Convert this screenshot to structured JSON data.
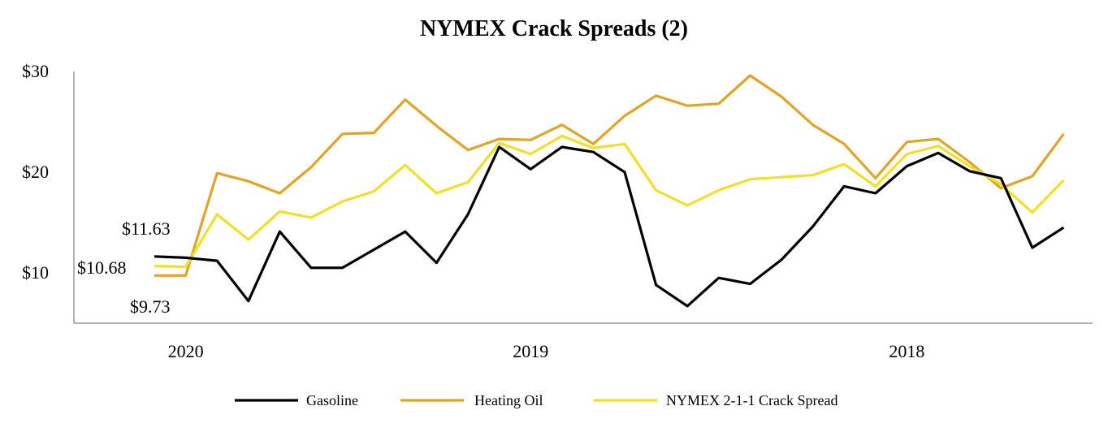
{
  "chart_data": {
    "type": "line",
    "title": "NYMEX Crack Spreads (2)",
    "xlabel": "",
    "ylabel": "",
    "ylim": [
      5,
      30
    ],
    "yticks": [
      {
        "value": 30,
        "label": "$30"
      },
      {
        "value": 20,
        "label": "$20"
      },
      {
        "value": 10,
        "label": "$10"
      }
    ],
    "xticks": [
      {
        "index": 1,
        "label": "2020"
      },
      {
        "index": 12,
        "label": "2019"
      },
      {
        "index": 24,
        "label": "2018"
      }
    ],
    "point_count": 30,
    "series": [
      {
        "name": "Gasoline",
        "color": "#000000",
        "values": [
          11.63,
          11.5,
          11.2,
          7.2,
          14.1,
          10.5,
          10.5,
          12.3,
          14.1,
          11.0,
          15.8,
          22.5,
          20.3,
          22.5,
          22.0,
          20.0,
          8.8,
          6.7,
          9.5,
          8.9,
          11.3,
          14.6,
          18.6,
          17.9,
          20.6,
          21.9,
          20.1,
          19.4,
          12.5,
          14.5
        ]
      },
      {
        "name": "Heating Oil",
        "color": "#E0A526",
        "values": [
          9.73,
          9.73,
          19.9,
          19.1,
          17.9,
          20.5,
          23.8,
          23.9,
          27.2,
          24.6,
          22.2,
          23.3,
          23.2,
          24.7,
          22.8,
          25.6,
          27.6,
          26.6,
          26.8,
          29.6,
          27.5,
          24.7,
          22.8,
          19.4,
          23.0,
          23.3,
          21.0,
          18.4,
          19.6,
          23.8
        ]
      },
      {
        "name": "NYMEX 2-1-1 Crack Spread",
        "color": "#F0E028",
        "values": [
          10.68,
          10.6,
          15.8,
          13.3,
          16.1,
          15.5,
          17.1,
          18.1,
          20.7,
          17.9,
          19.0,
          22.9,
          21.8,
          23.6,
          22.4,
          22.8,
          18.2,
          16.7,
          18.2,
          19.3,
          19.5,
          19.7,
          20.8,
          18.6,
          21.8,
          22.6,
          20.6,
          18.8,
          16.0,
          19.2
        ]
      }
    ],
    "annotations": [
      {
        "label": "$11.63",
        "series": "Gasoline"
      },
      {
        "label": "$10.68",
        "series": "NYMEX 2-1-1 Crack Spread"
      },
      {
        "label": "$9.73",
        "series": "Heating Oil"
      }
    ],
    "legend_position": "bottom"
  }
}
